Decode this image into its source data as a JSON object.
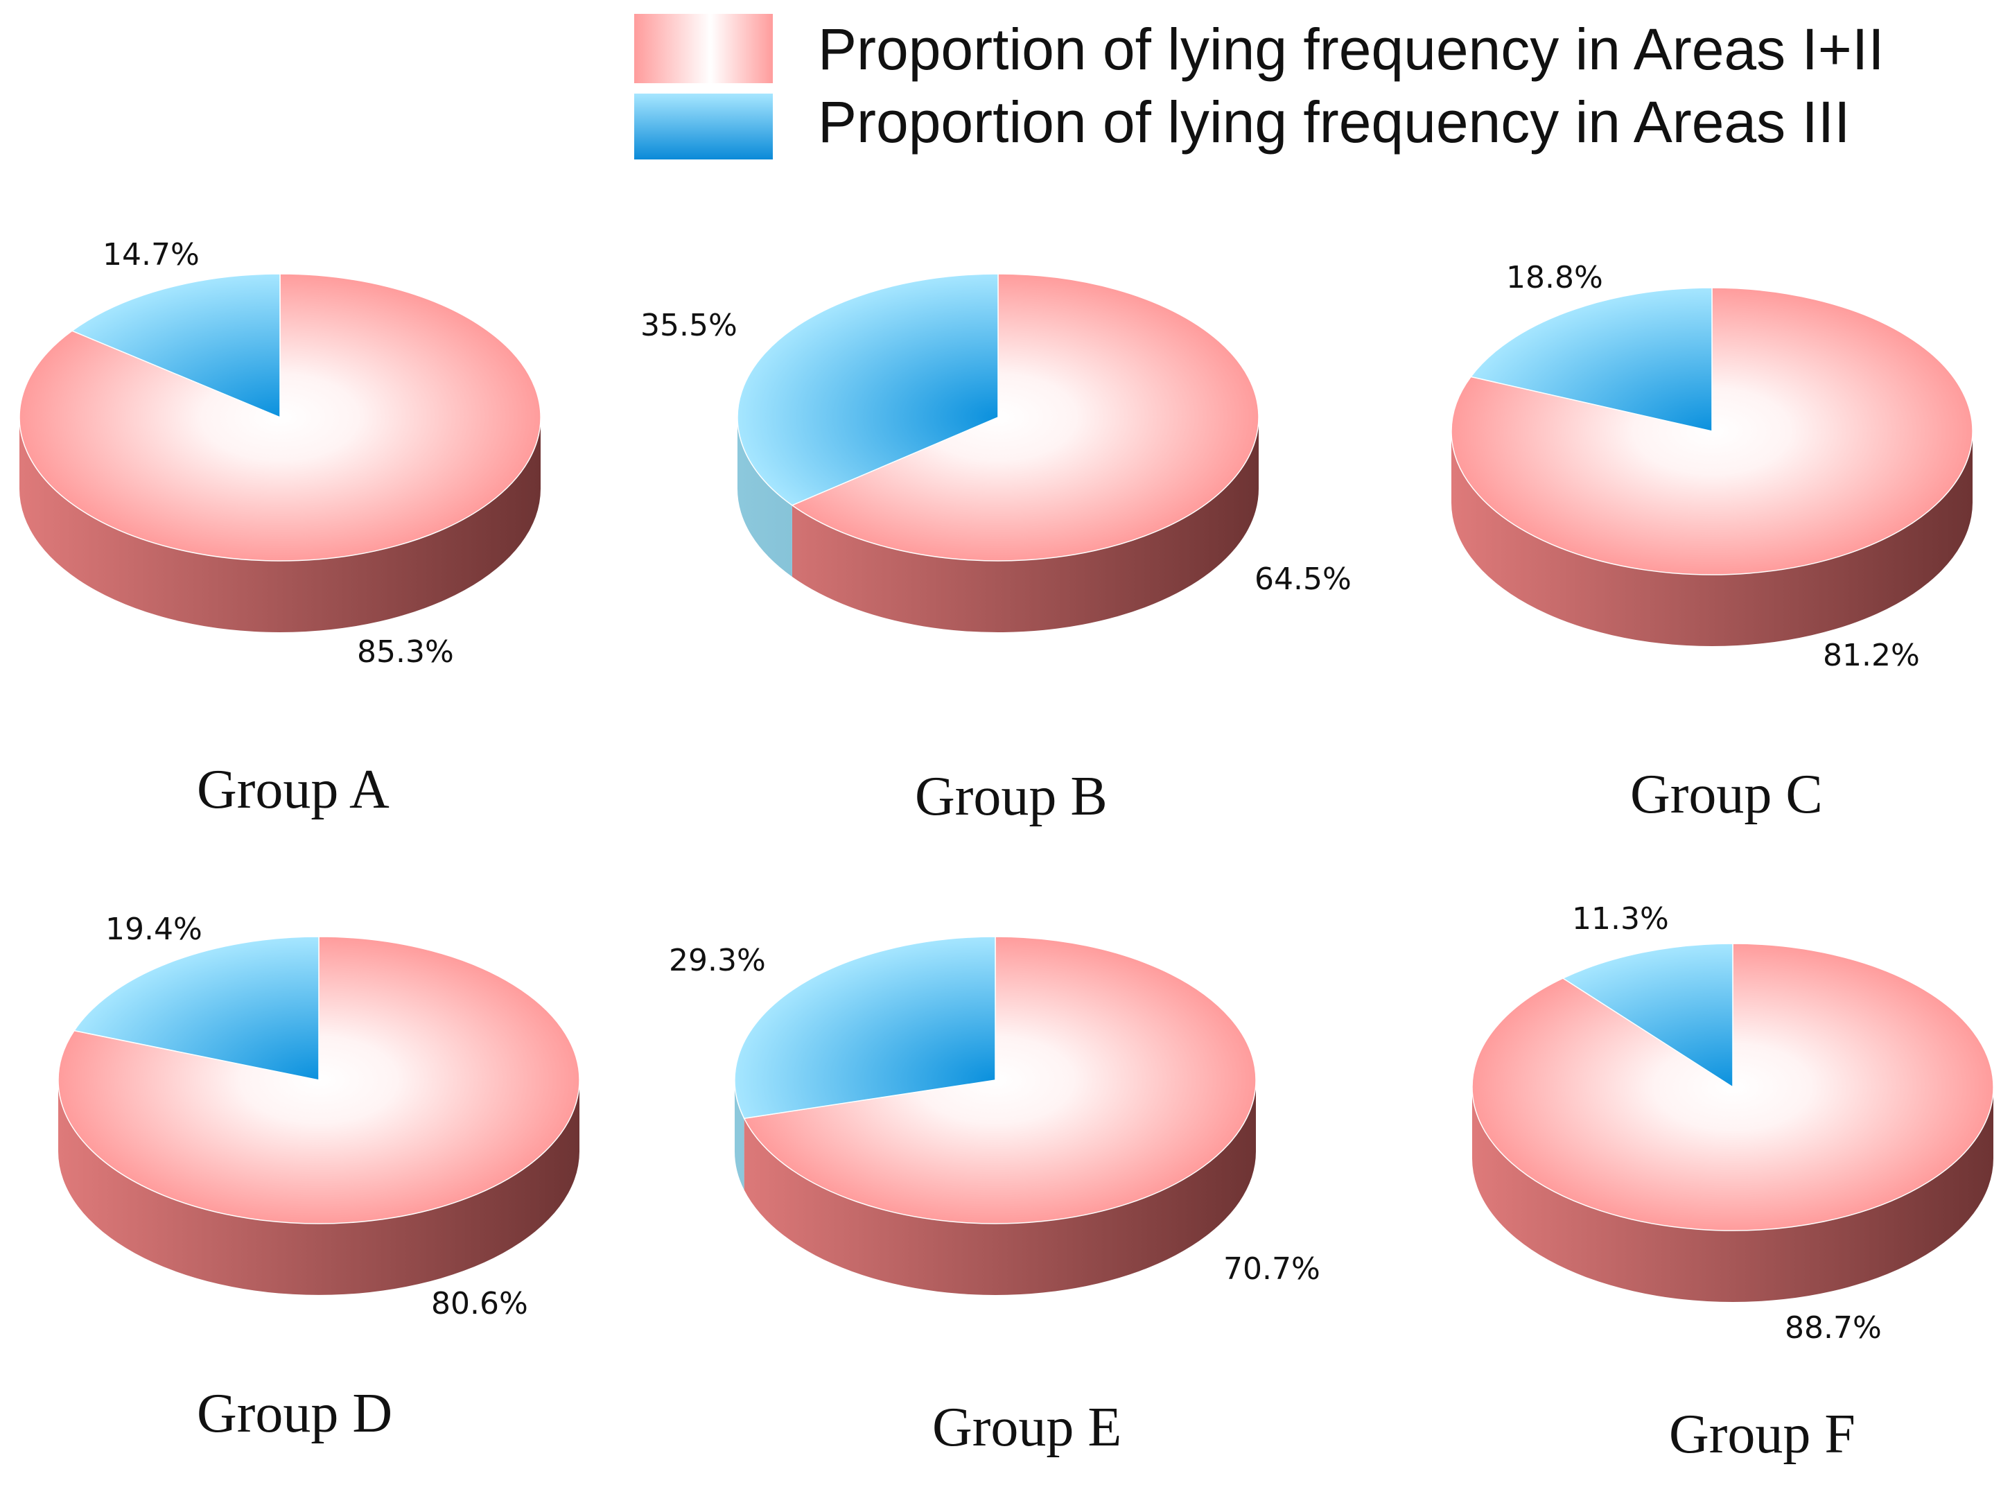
{
  "chart_data": {
    "type": "pie",
    "legend": {
      "position": "top-right",
      "entries": [
        {
          "key": "areas_12",
          "label": "Proportion of lying frequency in Areas I+II",
          "color": "#ff9a9a"
        },
        {
          "key": "areas_3",
          "label": "Proportion of lying frequency in Areas III",
          "color": "#1aa3e8"
        }
      ]
    },
    "series_colors": {
      "areas_12": {
        "top_edge": "#ff9c9c",
        "top_center": "#ffffff",
        "side_light": "#de7a7a",
        "side_dark": "#6e3434"
      },
      "areas_3": {
        "top_edge": "#a6e6ff",
        "top_center": "#0a90dd",
        "side_light": "#8cc8dc",
        "side_dark": "#5a9ab8"
      }
    },
    "charts": [
      {
        "title": "Group A",
        "labels": [
          "Areas I+II",
          "Areas III"
        ],
        "values": [
          85.3,
          14.7
        ],
        "value_labels": [
          "85.3%",
          "14.7%"
        ]
      },
      {
        "title": "Group B",
        "labels": [
          "Areas I+II",
          "Areas III"
        ],
        "values": [
          64.5,
          35.5
        ],
        "value_labels": [
          "64.5%",
          "35.5%"
        ]
      },
      {
        "title": "Group C",
        "labels": [
          "Areas I+II",
          "Areas III"
        ],
        "values": [
          81.2,
          18.8
        ],
        "value_labels": [
          "81.2%",
          "18.8%"
        ]
      },
      {
        "title": "Group D",
        "labels": [
          "Areas I+II",
          "Areas III"
        ],
        "values": [
          80.6,
          19.4
        ],
        "value_labels": [
          "80.6%",
          "19.4%"
        ]
      },
      {
        "title": "Group E",
        "labels": [
          "Areas I+II",
          "Areas III"
        ],
        "values": [
          70.7,
          29.3
        ],
        "value_labels": [
          "70.7%",
          "29.3%"
        ]
      },
      {
        "title": "Group F",
        "labels": [
          "Areas I+II",
          "Areas III"
        ],
        "values": [
          88.7,
          11.3
        ],
        "value_labels": [
          "88.7%",
          "11.3%"
        ]
      }
    ]
  }
}
